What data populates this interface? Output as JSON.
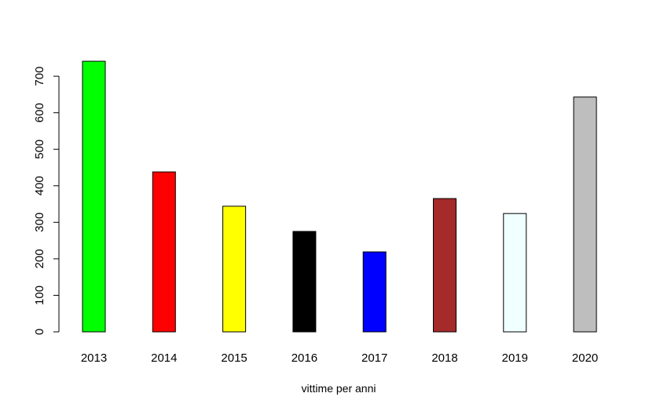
{
  "chart_data": {
    "type": "bar",
    "title": "",
    "xlabel": "vittime per anni",
    "ylabel": "",
    "categories": [
      "2013",
      "2014",
      "2015",
      "2016",
      "2017",
      "2018",
      "2019",
      "2020"
    ],
    "values": [
      741,
      438,
      344,
      275,
      219,
      365,
      324,
      643
    ],
    "colors": [
      "#00ff00",
      "#ff0000",
      "#ffff00",
      "#000000",
      "#0000ff",
      "#a52a2a",
      "#f0ffff",
      "#bebebe"
    ],
    "bar_border_color": "#000000",
    "ylim": [
      0,
      750
    ],
    "y_ticks": [
      0,
      100,
      200,
      300,
      400,
      500,
      600,
      700
    ],
    "y_tick_labels": [
      "0",
      "100",
      "200",
      "300",
      "400",
      "500",
      "600",
      "700"
    ],
    "y_tick_label_orientation": "vertical",
    "grid": false,
    "legend": "none"
  }
}
